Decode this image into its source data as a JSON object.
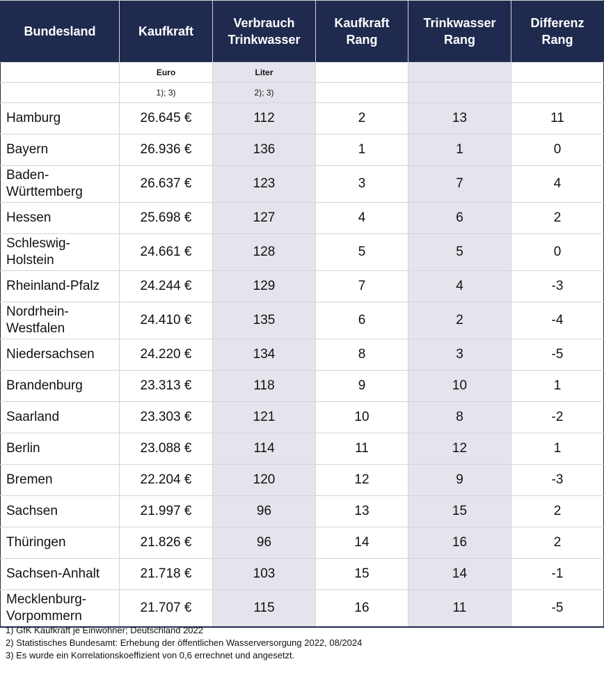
{
  "header": {
    "col1": "Bundesland",
    "col2": "Kaufkraft",
    "col3_line1": "Verbrauch",
    "col3_line2": "Trinkwasser",
    "col4_line1": "Kaufkraft",
    "col4_line2": "Rang",
    "col5_line1": "Trinkwasser",
    "col5_line2": "Rang",
    "col6_line1": "Differenz",
    "col6_line2": "Rang"
  },
  "units": {
    "kaufkraft": "Euro",
    "verbrauch": "Liter"
  },
  "notes": {
    "kaufkraft": "1); 3)",
    "verbrauch": "2); 3)"
  },
  "rows": [
    {
      "name": "Hamburg",
      "kaufkraft": "26.645 €",
      "verbrauch": "112",
      "rang_kaufkraft": "2",
      "rang_trinkwasser": "13",
      "differenz": "11"
    },
    {
      "name": "Bayern",
      "kaufkraft": "26.936 €",
      "verbrauch": "136",
      "rang_kaufkraft": "1",
      "rang_trinkwasser": "1",
      "differenz": "0"
    },
    {
      "name": "Baden-Württemberg",
      "name_line1": "Baden-",
      "name_line2": "Württemberg",
      "kaufkraft": "26.637 €",
      "verbrauch": "123",
      "rang_kaufkraft": "3",
      "rang_trinkwasser": "7",
      "differenz": "4"
    },
    {
      "name": "Hessen",
      "kaufkraft": "25.698 €",
      "verbrauch": "127",
      "rang_kaufkraft": "4",
      "rang_trinkwasser": "6",
      "differenz": "2"
    },
    {
      "name": "Schleswig-Holstein",
      "name_line1": "Schleswig-",
      "name_line2": "Holstein",
      "kaufkraft": "24.661 €",
      "verbrauch": "128",
      "rang_kaufkraft": "5",
      "rang_trinkwasser": "5",
      "differenz": "0"
    },
    {
      "name": "Rheinland-Pfalz",
      "kaufkraft": "24.244 €",
      "verbrauch": "129",
      "rang_kaufkraft": "7",
      "rang_trinkwasser": "4",
      "differenz": "-3"
    },
    {
      "name": "Nordrhein-Westfalen",
      "name_line1": "Nordrhein-",
      "name_line2": "Westfalen",
      "kaufkraft": "24.410 €",
      "verbrauch": "135",
      "rang_kaufkraft": "6",
      "rang_trinkwasser": "2",
      "differenz": "-4"
    },
    {
      "name": "Niedersachsen",
      "kaufkraft": "24.220 €",
      "verbrauch": "134",
      "rang_kaufkraft": "8",
      "rang_trinkwasser": "3",
      "differenz": "-5"
    },
    {
      "name": "Brandenburg",
      "kaufkraft": "23.313 €",
      "verbrauch": "118",
      "rang_kaufkraft": "9",
      "rang_trinkwasser": "10",
      "differenz": "1"
    },
    {
      "name": "Saarland",
      "kaufkraft": "23.303 €",
      "verbrauch": "121",
      "rang_kaufkraft": "10",
      "rang_trinkwasser": "8",
      "differenz": "-2"
    },
    {
      "name": "Berlin",
      "kaufkraft": "23.088 €",
      "verbrauch": "114",
      "rang_kaufkraft": "11",
      "rang_trinkwasser": "12",
      "differenz": "1"
    },
    {
      "name": "Bremen",
      "kaufkraft": "22.204 €",
      "verbrauch": "120",
      "rang_kaufkraft": "12",
      "rang_trinkwasser": "9",
      "differenz": "-3"
    },
    {
      "name": "Sachsen",
      "kaufkraft": "21.997 €",
      "verbrauch": "96",
      "rang_kaufkraft": "13",
      "rang_trinkwasser": "15",
      "differenz": "2"
    },
    {
      "name": "Thüringen",
      "kaufkraft": "21.826 €",
      "verbrauch": "96",
      "rang_kaufkraft": "14",
      "rang_trinkwasser": "16",
      "differenz": "2"
    },
    {
      "name": "Sachsen-Anhalt",
      "kaufkraft": "21.718 €",
      "verbrauch": "103",
      "rang_kaufkraft": "15",
      "rang_trinkwasser": "14",
      "differenz": "-1"
    },
    {
      "name": "Mecklenburg-Vorpommern",
      "name_line1": "Mecklenburg-",
      "name_line2": "Vorpommern",
      "kaufkraft": "21.707 €",
      "verbrauch": "115",
      "rang_kaufkraft": "16",
      "rang_trinkwasser": "11",
      "differenz": "-5"
    }
  ],
  "footnotes": [
    "1) GfK Kaufkraft je Einwohner;  Deutschland 2022",
    "2) Statistisches Bundesamt: Erhebung der öffentlichen Wasserversorgung 2022, 08/2024",
    "3) Es wurde ein Korrelationskoeffizient von 0,6 errechnet und angesetzt."
  ],
  "colors": {
    "header_bg": "#1f2a4e",
    "header_text": "#ffffff",
    "shade": "#e4e4ec"
  }
}
